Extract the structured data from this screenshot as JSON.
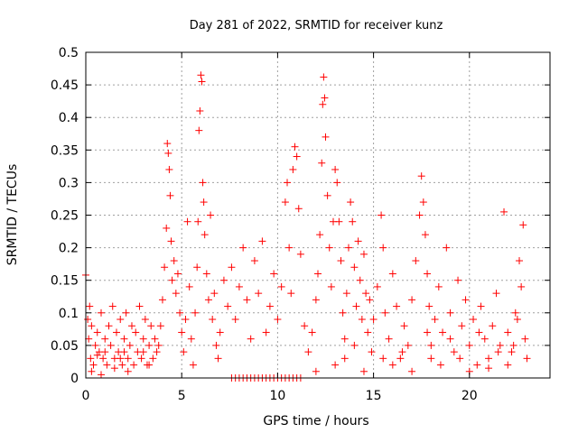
{
  "chart_data": {
    "type": "scatter",
    "title": "Day 281 of 2022, SRMTID for receiver kunz",
    "xlabel": "GPS time / hours",
    "ylabel": "SRMTID / TECUs",
    "xlim": [
      0,
      24.2
    ],
    "ylim": [
      0,
      0.5
    ],
    "xticks": [
      "0",
      "5",
      "10",
      "15",
      "20"
    ],
    "yticks": [
      "0",
      "0.05",
      "0.1",
      "0.15",
      "0.2",
      "0.25",
      "0.3",
      "0.35",
      "0.4",
      "0.45",
      "0.5"
    ],
    "grid": true,
    "marker": "plus",
    "color": "#ff0000",
    "series": [
      {
        "values": [
          [
            0.0,
            0.158
          ],
          [
            0.1,
            0.09
          ],
          [
            0.15,
            0.06
          ],
          [
            0.2,
            0.11
          ],
          [
            0.25,
            0.03
          ],
          [
            0.3,
            0.08
          ],
          [
            0.4,
            0.02
          ],
          [
            0.5,
            0.05
          ],
          [
            0.6,
            0.07
          ],
          [
            0.7,
            0.04
          ],
          [
            0.8,
            0.1
          ],
          [
            0.9,
            0.03
          ],
          [
            1.0,
            0.06
          ],
          [
            1.1,
            0.02
          ],
          [
            1.2,
            0.08
          ],
          [
            1.3,
            0.05
          ],
          [
            1.4,
            0.11
          ],
          [
            1.5,
            0.03
          ],
          [
            1.6,
            0.07
          ],
          [
            1.7,
            0.04
          ],
          [
            1.8,
            0.09
          ],
          [
            1.9,
            0.02
          ],
          [
            2.0,
            0.06
          ],
          [
            2.1,
            0.1
          ],
          [
            2.2,
            0.03
          ],
          [
            2.3,
            0.05
          ],
          [
            2.4,
            0.08
          ],
          [
            2.5,
            0.02
          ],
          [
            2.6,
            0.07
          ],
          [
            2.7,
            0.04
          ],
          [
            2.8,
            0.11
          ],
          [
            2.9,
            0.03
          ],
          [
            3.0,
            0.06
          ],
          [
            3.1,
            0.09
          ],
          [
            3.2,
            0.02
          ],
          [
            3.3,
            0.05
          ],
          [
            3.4,
            0.08
          ],
          [
            3.5,
            0.03
          ],
          [
            3.6,
            0.06
          ],
          [
            3.7,
            0.04
          ],
          [
            0.3,
            0.01
          ],
          [
            0.8,
            0.005
          ],
          [
            1.5,
            0.015
          ],
          [
            2.2,
            0.01
          ],
          [
            3.3,
            0.02
          ],
          [
            1.0,
            0.04
          ],
          [
            2.0,
            0.04
          ],
          [
            3.0,
            0.04
          ],
          [
            0.6,
            0.035
          ],
          [
            1.8,
            0.03
          ],
          [
            3.8,
            0.05
          ],
          [
            3.9,
            0.08
          ],
          [
            4.0,
            0.12
          ],
          [
            4.1,
            0.17
          ],
          [
            4.2,
            0.23
          ],
          [
            4.25,
            0.36
          ],
          [
            4.3,
            0.345
          ],
          [
            4.35,
            0.32
          ],
          [
            4.4,
            0.28
          ],
          [
            4.45,
            0.21
          ],
          [
            4.5,
            0.15
          ],
          [
            4.6,
            0.18
          ],
          [
            4.7,
            0.13
          ],
          [
            4.8,
            0.16
          ],
          [
            4.9,
            0.1
          ],
          [
            5.0,
            0.07
          ],
          [
            5.1,
            0.04
          ],
          [
            5.2,
            0.09
          ],
          [
            5.3,
            0.24
          ],
          [
            5.4,
            0.14
          ],
          [
            5.5,
            0.06
          ],
          [
            5.6,
            0.02
          ],
          [
            5.7,
            0.1
          ],
          [
            5.8,
            0.17
          ],
          [
            5.85,
            0.24
          ],
          [
            5.9,
            0.38
          ],
          [
            5.95,
            0.41
          ],
          [
            6.0,
            0.465
          ],
          [
            6.05,
            0.455
          ],
          [
            6.1,
            0.3
          ],
          [
            6.15,
            0.27
          ],
          [
            6.2,
            0.22
          ],
          [
            6.3,
            0.16
          ],
          [
            6.4,
            0.12
          ],
          [
            6.5,
            0.25
          ],
          [
            6.6,
            0.09
          ],
          [
            6.7,
            0.13
          ],
          [
            6.8,
            0.05
          ],
          [
            6.9,
            0.03
          ],
          [
            7.0,
            0.07
          ],
          [
            7.2,
            0.15
          ],
          [
            7.4,
            0.11
          ],
          [
            7.6,
            0.17
          ],
          [
            7.8,
            0.09
          ],
          [
            8.0,
            0.14
          ],
          [
            8.2,
            0.2
          ],
          [
            8.4,
            0.12
          ],
          [
            8.6,
            0.06
          ],
          [
            8.8,
            0.18
          ],
          [
            9.0,
            0.13
          ],
          [
            9.2,
            0.21
          ],
          [
            9.4,
            0.07
          ],
          [
            9.6,
            0.11
          ],
          [
            9.8,
            0.16
          ],
          [
            10.0,
            0.09
          ],
          [
            10.2,
            0.14
          ],
          [
            10.4,
            0.27
          ],
          [
            10.5,
            0.3
          ],
          [
            10.6,
            0.2
          ],
          [
            10.7,
            0.13
          ],
          [
            10.8,
            0.32
          ],
          [
            10.9,
            0.355
          ],
          [
            11.0,
            0.34
          ],
          [
            11.1,
            0.26
          ],
          [
            11.2,
            0.19
          ],
          [
            11.4,
            0.08
          ],
          [
            11.6,
            0.04
          ],
          [
            7.6,
            0.0
          ],
          [
            7.8,
            0.0
          ],
          [
            8.0,
            0.0
          ],
          [
            8.2,
            0.0
          ],
          [
            8.4,
            0.0
          ],
          [
            8.6,
            0.0
          ],
          [
            8.8,
            0.0
          ],
          [
            9.0,
            0.0
          ],
          [
            9.2,
            0.0
          ],
          [
            9.4,
            0.0
          ],
          [
            9.6,
            0.0
          ],
          [
            9.8,
            0.0
          ],
          [
            10.0,
            0.0
          ],
          [
            10.2,
            0.0
          ],
          [
            10.4,
            0.0
          ],
          [
            10.6,
            0.0
          ],
          [
            10.8,
            0.0
          ],
          [
            11.0,
            0.0
          ],
          [
            11.2,
            0.0
          ],
          [
            11.8,
            0.07
          ],
          [
            12.0,
            0.12
          ],
          [
            12.1,
            0.16
          ],
          [
            12.2,
            0.22
          ],
          [
            12.3,
            0.33
          ],
          [
            12.35,
            0.42
          ],
          [
            12.4,
            0.462
          ],
          [
            12.45,
            0.43
          ],
          [
            12.5,
            0.37
          ],
          [
            12.6,
            0.28
          ],
          [
            12.7,
            0.2
          ],
          [
            12.8,
            0.14
          ],
          [
            12.9,
            0.24
          ],
          [
            13.0,
            0.32
          ],
          [
            13.1,
            0.3
          ],
          [
            13.2,
            0.24
          ],
          [
            13.3,
            0.18
          ],
          [
            13.4,
            0.1
          ],
          [
            13.5,
            0.06
          ],
          [
            13.6,
            0.13
          ],
          [
            13.7,
            0.2
          ],
          [
            13.8,
            0.27
          ],
          [
            13.9,
            0.24
          ],
          [
            14.0,
            0.17
          ],
          [
            14.1,
            0.11
          ],
          [
            14.2,
            0.21
          ],
          [
            14.3,
            0.15
          ],
          [
            14.4,
            0.09
          ],
          [
            14.5,
            0.19
          ],
          [
            14.6,
            0.13
          ],
          [
            14.7,
            0.07
          ],
          [
            14.8,
            0.12
          ],
          [
            14.9,
            0.04
          ],
          [
            15.0,
            0.09
          ],
          [
            15.2,
            0.14
          ],
          [
            15.4,
            0.25
          ],
          [
            15.5,
            0.2
          ],
          [
            15.6,
            0.1
          ],
          [
            15.8,
            0.06
          ],
          [
            16.0,
            0.16
          ],
          [
            16.2,
            0.11
          ],
          [
            16.4,
            0.03
          ],
          [
            16.6,
            0.08
          ],
          [
            16.8,
            0.05
          ],
          [
            17.0,
            0.12
          ],
          [
            17.2,
            0.18
          ],
          [
            17.4,
            0.25
          ],
          [
            17.5,
            0.31
          ],
          [
            17.6,
            0.27
          ],
          [
            17.7,
            0.22
          ],
          [
            17.8,
            0.16
          ],
          [
            17.9,
            0.11
          ],
          [
            18.0,
            0.05
          ],
          [
            18.2,
            0.09
          ],
          [
            18.4,
            0.14
          ],
          [
            18.6,
            0.07
          ],
          [
            18.8,
            0.2
          ],
          [
            19.0,
            0.1
          ],
          [
            19.2,
            0.04
          ],
          [
            19.4,
            0.15
          ],
          [
            19.6,
            0.08
          ],
          [
            19.8,
            0.12
          ],
          [
            20.0,
            0.05
          ],
          [
            20.2,
            0.09
          ],
          [
            20.4,
            0.02
          ],
          [
            20.6,
            0.11
          ],
          [
            20.8,
            0.06
          ],
          [
            21.0,
            0.03
          ],
          [
            21.2,
            0.08
          ],
          [
            21.4,
            0.13
          ],
          [
            21.6,
            0.05
          ],
          [
            21.8,
            0.255
          ],
          [
            22.0,
            0.07
          ],
          [
            22.2,
            0.04
          ],
          [
            22.4,
            0.1
          ],
          [
            22.6,
            0.18
          ],
          [
            22.8,
            0.235
          ],
          [
            22.9,
            0.06
          ],
          [
            22.7,
            0.14
          ],
          [
            22.5,
            0.09
          ],
          [
            23.0,
            0.03
          ],
          [
            12.0,
            0.01
          ],
          [
            13.0,
            0.02
          ],
          [
            14.5,
            0.01
          ],
          [
            16.0,
            0.02
          ],
          [
            17.0,
            0.01
          ],
          [
            18.5,
            0.02
          ],
          [
            20.0,
            0.01
          ],
          [
            21.0,
            0.015
          ],
          [
            22.0,
            0.02
          ],
          [
            19.5,
            0.03
          ],
          [
            15.5,
            0.03
          ],
          [
            21.5,
            0.04
          ],
          [
            20.5,
            0.07
          ],
          [
            19.0,
            0.06
          ],
          [
            16.5,
            0.04
          ],
          [
            18.0,
            0.03
          ],
          [
            22.3,
            0.05
          ],
          [
            17.8,
            0.07
          ],
          [
            14.0,
            0.05
          ],
          [
            13.5,
            0.03
          ]
        ]
      }
    ]
  }
}
